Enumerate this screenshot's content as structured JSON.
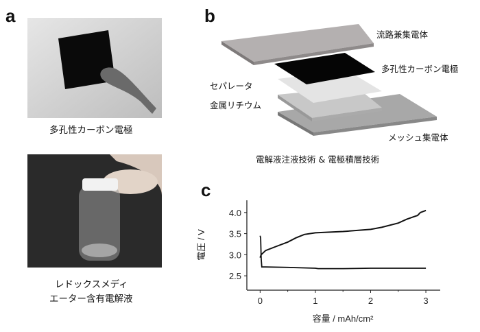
{
  "panels": {
    "a": "a",
    "b": "b",
    "c": "c"
  },
  "panel_a": {
    "photo1_caption": "多孔性カーボン電極",
    "photo2_caption_line1": "レドックスメディ",
    "photo2_caption_line2": "エーター含有電解液"
  },
  "panel_b": {
    "layers": [
      {
        "label": "流路兼集電体",
        "color": "#b4b0b0"
      },
      {
        "label": "多孔性カーボン電極",
        "color": "#050505"
      },
      {
        "label": "セパレータ",
        "color": "#e4e4e4"
      },
      {
        "label": "金属リチウム",
        "color": "#c8c8c8"
      },
      {
        "label": "メッシュ集電体",
        "color": "#a8a8a8"
      }
    ],
    "caption": "電解液注液技術 & 電極積層技術"
  },
  "chart_data": {
    "type": "line",
    "xlabel": "容量 / mAh/cm²",
    "ylabel": "電圧 / V",
    "xlim": [
      -0.24,
      3.26
    ],
    "ylim": [
      2.16,
      4.29
    ],
    "xticks": [
      0,
      1,
      2,
      3
    ],
    "yticks": [
      2.5,
      3.0,
      3.5,
      4.0
    ],
    "ytick_labels": [
      "2.5",
      "3.0",
      "3.5",
      "4.0"
    ],
    "grid": false,
    "series": [
      {
        "x": [
          0,
          0.01,
          0.02,
          0.03,
          0.1,
          0.5,
          1.0,
          1.05,
          1.5,
          2.0,
          2.5,
          3.0
        ],
        "y": [
          3.45,
          3.4,
          2.9,
          2.71,
          2.71,
          2.7,
          2.68,
          2.67,
          2.67,
          2.68,
          2.68,
          2.68
        ]
      },
      {
        "x": [
          0,
          0.02,
          0.1,
          0.3,
          0.5,
          0.65,
          0.8,
          1.0,
          1.5,
          2.0,
          2.2,
          2.5,
          2.65,
          2.8,
          2.85,
          2.9,
          3.0
        ],
        "y": [
          2.93,
          3.0,
          3.1,
          3.2,
          3.3,
          3.4,
          3.48,
          3.52,
          3.55,
          3.6,
          3.65,
          3.75,
          3.84,
          3.91,
          3.93,
          4.0,
          4.05
        ]
      }
    ]
  }
}
